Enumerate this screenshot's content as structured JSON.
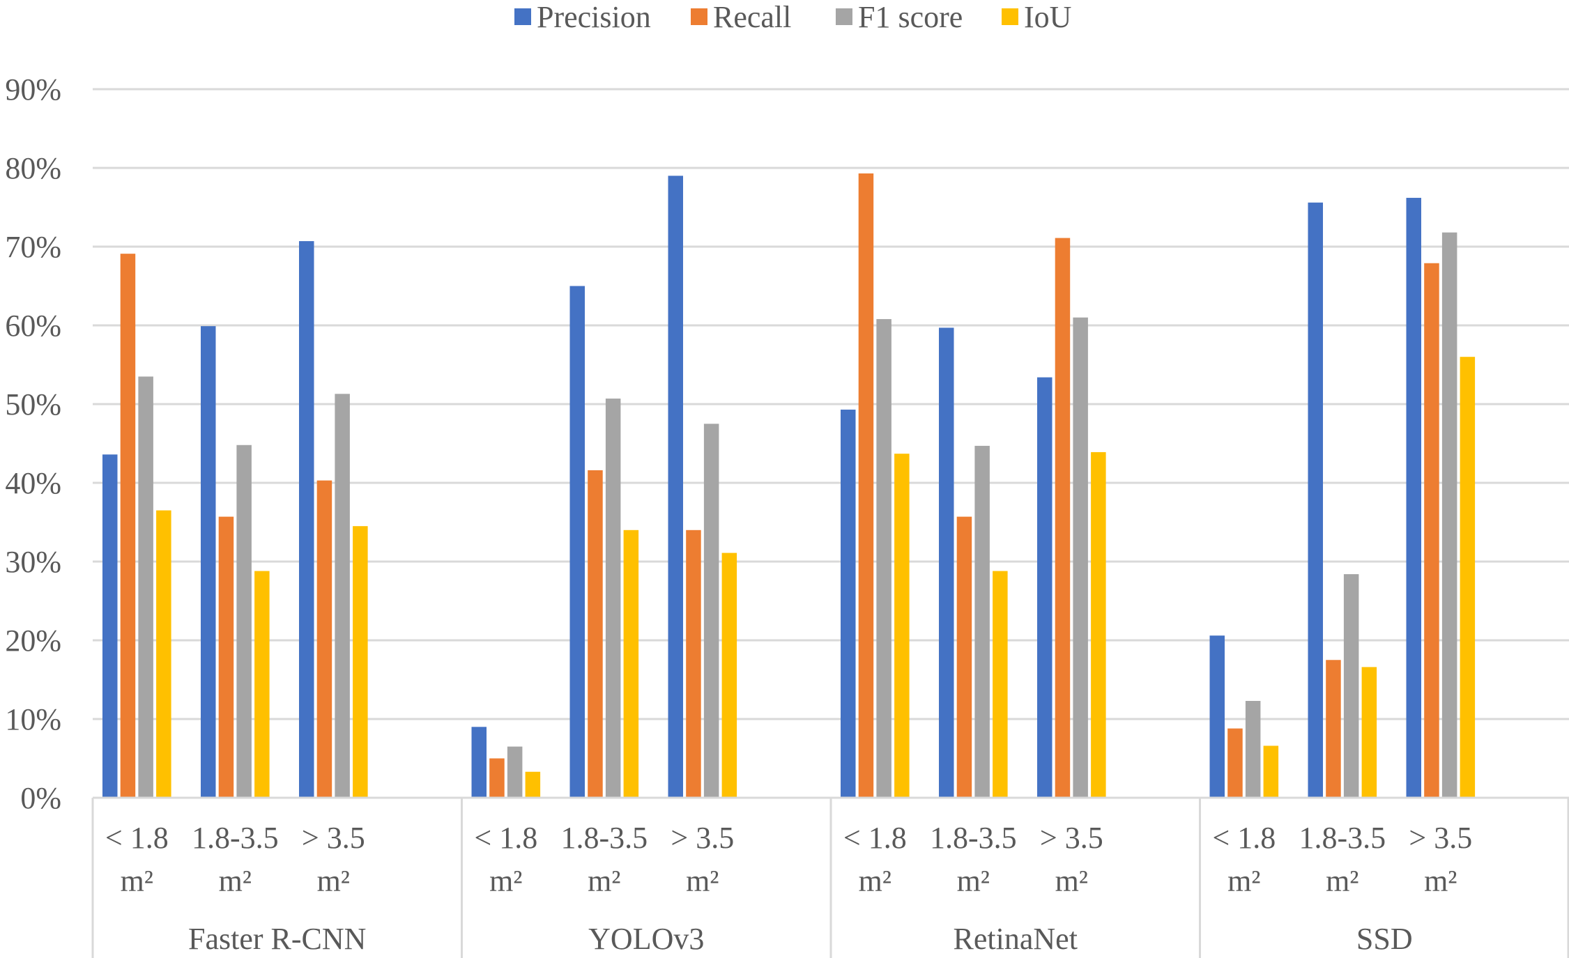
{
  "chart_data": {
    "type": "bar",
    "title": "",
    "xlabel": "",
    "ylabel": "",
    "ylim": [
      0,
      90
    ],
    "yticks": [
      "0%",
      "10%",
      "20%",
      "30%",
      "40%",
      "50%",
      "60%",
      "70%",
      "80%",
      "90%"
    ],
    "legend_position": "top",
    "groups": [
      {
        "name": "Faster R-CNN",
        "categories": [
          [
            "< 1.8",
            "m²"
          ],
          [
            "1.8-3.5",
            "m²"
          ],
          [
            "> 3.5",
            "m²"
          ]
        ],
        "series": [
          {
            "name": "Precision",
            "values": [
              43.6,
              59.9,
              70.7
            ]
          },
          {
            "name": "Recall",
            "values": [
              69.1,
              35.7,
              40.3
            ]
          },
          {
            "name": "F1 score",
            "values": [
              53.5,
              44.8,
              51.3
            ]
          },
          {
            "name": "IoU",
            "values": [
              36.5,
              28.8,
              34.5
            ]
          }
        ]
      },
      {
        "name": "YOLOv3",
        "categories": [
          [
            "< 1.8",
            "m²"
          ],
          [
            "1.8-3.5",
            "m²"
          ],
          [
            "> 3.5",
            "m²"
          ]
        ],
        "series": [
          {
            "name": "Precision",
            "values": [
              9.0,
              65.0,
              79.0
            ]
          },
          {
            "name": "Recall",
            "values": [
              5.0,
              41.6,
              34.0
            ]
          },
          {
            "name": "F1 score",
            "values": [
              6.5,
              50.7,
              47.5
            ]
          },
          {
            "name": "IoU",
            "values": [
              3.3,
              34.0,
              31.1
            ]
          }
        ]
      },
      {
        "name": "RetinaNet",
        "categories": [
          [
            "< 1.8",
            "m²"
          ],
          [
            "1.8-3.5",
            "m²"
          ],
          [
            "> 3.5",
            "m²"
          ]
        ],
        "series": [
          {
            "name": "Precision",
            "values": [
              49.3,
              59.7,
              53.4
            ]
          },
          {
            "name": "Recall",
            "values": [
              79.3,
              35.7,
              71.1
            ]
          },
          {
            "name": "F1 score",
            "values": [
              60.8,
              44.7,
              61.0
            ]
          },
          {
            "name": "IoU",
            "values": [
              43.7,
              28.8,
              43.9
            ]
          }
        ]
      },
      {
        "name": "SSD",
        "categories": [
          [
            "< 1.8",
            "m²"
          ],
          [
            "1.8-3.5",
            "m²"
          ],
          [
            "> 3.5",
            "m²"
          ]
        ],
        "series": [
          {
            "name": "Precision",
            "values": [
              20.6,
              75.6,
              76.2
            ]
          },
          {
            "name": "Recall",
            "values": [
              8.8,
              17.5,
              67.9
            ]
          },
          {
            "name": "F1 score",
            "values": [
              12.3,
              28.4,
              71.8
            ]
          },
          {
            "name": "IoU",
            "values": [
              6.6,
              16.6,
              56.0
            ]
          }
        ]
      }
    ],
    "legend": [
      {
        "name": "Precision",
        "color": "#4472C4"
      },
      {
        "name": "Recall",
        "color": "#ED7D31"
      },
      {
        "name": "F1 score",
        "color": "#A5A5A5"
      },
      {
        "name": "IoU",
        "color": "#FFC000"
      }
    ]
  }
}
